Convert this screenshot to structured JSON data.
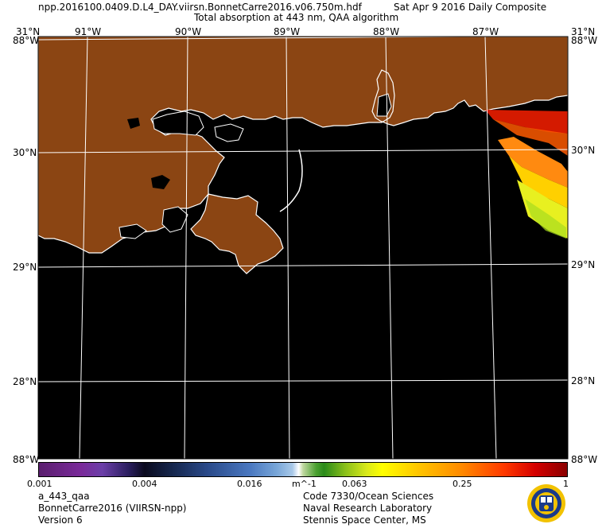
{
  "header": {
    "file": "npp.2016100.0409.D.L4_DAY.viirsn.BonnetCarre2016.v06.750m.hdf",
    "date": "Sat Apr  9 2016 Daily Composite",
    "title": "Total absorption at 443 nm, QAA algorithm"
  },
  "map": {
    "lat_labels": [
      "31°N",
      "30°N",
      "29°N",
      "28°N",
      "88°W"
    ],
    "lon_labels": [
      "31°N",
      "91°W",
      "90°W",
      "89°W",
      "88°W",
      "87°W",
      "88°W"
    ],
    "colors": {
      "land": "#8b4513",
      "water": "#000000",
      "coast": "#ffffff",
      "grid": "#ffffff"
    }
  },
  "colorbar": {
    "ticks": [
      "0.001",
      "0.004",
      "0.016",
      "0.063",
      "0.25",
      "1"
    ],
    "unit": "m^-1"
  },
  "footer": {
    "left": [
      "a_443_qaa",
      "BonnetCarre2016 (VIIRSN-npp)",
      "Version 6"
    ],
    "right": [
      "Code 7330/Ocean Sciences",
      "Naval Research Laboratory",
      "Stennis Space Center, MS"
    ]
  }
}
